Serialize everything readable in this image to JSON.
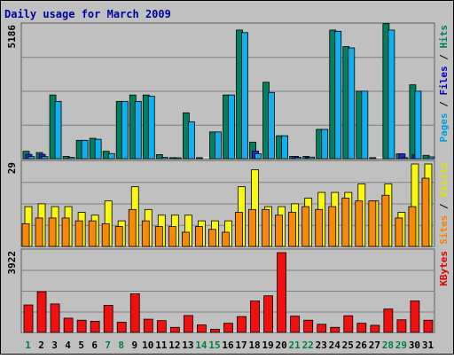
{
  "chart_data": {
    "type": "bar",
    "title": "Daily usage for March 2009",
    "categories": [
      "1",
      "2",
      "3",
      "4",
      "5",
      "6",
      "7",
      "8",
      "9",
      "10",
      "11",
      "12",
      "13",
      "14",
      "15",
      "16",
      "17",
      "18",
      "19",
      "20",
      "21",
      "22",
      "23",
      "24",
      "25",
      "26",
      "27",
      "28",
      "29",
      "30",
      "31"
    ],
    "weekend_days": [
      "1",
      "7",
      "8",
      "14",
      "15",
      "21",
      "22",
      "28",
      "29"
    ],
    "panels": [
      {
        "id": "hits",
        "max_label": "5186",
        "ylim": [
          0,
          5186
        ],
        "label_parts": [
          {
            "text": "Pages",
            "color": "#00a0e0"
          },
          {
            "text": " / ",
            "color": "#000000"
          },
          {
            "text": "Files",
            "color": "#0000c0"
          },
          {
            "text": " / ",
            "color": "#000000"
          },
          {
            "text": "Hits",
            "color": "#008060"
          }
        ],
        "series": [
          {
            "name": "Hits",
            "color": "#008060",
            "values": [
              290,
              240,
              2500,
              90,
              720,
              800,
              290,
              2250,
              2500,
              2500,
              160,
              40,
              1800,
              40,
              1050,
              2500,
              5050,
              650,
              3000,
              900,
              90,
              90,
              1150,
              5050,
              4400,
              2650,
              40,
              5300,
              190,
              2900,
              130
            ]
          },
          {
            "name": "Files",
            "color": "#1c2ae0",
            "values": [
              170,
              170,
              0,
              0,
              0,
              0,
              0,
              0,
              0,
              0,
              0,
              0,
              0,
              0,
              0,
              0,
              0,
              300,
              0,
              0,
              90,
              50,
              0,
              0,
              0,
              0,
              0,
              0,
              190,
              150,
              0
            ]
          },
          {
            "name": "Pages",
            "color": "#10b0f0",
            "values": [
              80,
              80,
              2250,
              50,
              720,
              760,
              200,
              2250,
              2250,
              2450,
              50,
              30,
              1450,
              0,
              1050,
              2500,
              4950,
              190,
              2600,
              900,
              50,
              60,
              1150,
              5000,
              4350,
              2650,
              0,
              5050,
              40,
              2650,
              70
            ]
          }
        ]
      },
      {
        "id": "visits",
        "max_label": "29",
        "ylim": [
          0,
          29
        ],
        "label_parts": [
          {
            "text": "Sites",
            "color": "#ff8000"
          },
          {
            "text": " / ",
            "color": "#000000"
          },
          {
            "text": "Visits",
            "color": "#e0e000"
          }
        ],
        "series": [
          {
            "name": "Visits",
            "color": "#f8f810",
            "values": [
              14,
              15,
              14,
              14,
              12,
              11,
              16,
              9,
              21,
              13,
              11,
              11,
              11,
              9,
              9,
              9,
              21,
              27,
              14,
              14,
              15,
              17,
              19,
              19,
              19,
              22,
              16,
              22,
              12,
              29,
              29
            ]
          },
          {
            "name": "Sites",
            "color": "#f88808",
            "values": [
              8,
              10,
              10,
              10,
              9,
              9,
              8,
              7,
              13,
              9,
              7,
              7,
              5,
              7,
              6,
              5,
              12,
              13,
              13,
              11,
              12,
              14,
              13,
              14,
              17,
              16,
              16,
              18,
              10,
              14,
              24
            ]
          }
        ]
      },
      {
        "id": "kbytes",
        "max_label": "3922",
        "ylim": [
          0,
          3922
        ],
        "label_parts": [
          {
            "text": "KBytes",
            "color": "#e00000"
          }
        ],
        "series": [
          {
            "name": "KBytes",
            "color": "#f01010",
            "values": [
              1350,
              2000,
              1400,
              700,
              600,
              550,
              1330,
              500,
              1900,
              650,
              580,
              250,
              830,
              370,
              150,
              450,
              780,
              1550,
              1800,
              3922,
              800,
              600,
              400,
              250,
              820,
              450,
              350,
              1150,
              620,
              1550,
              600
            ]
          }
        ]
      }
    ]
  }
}
